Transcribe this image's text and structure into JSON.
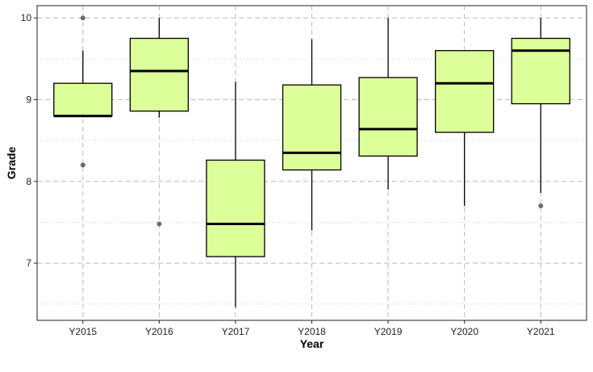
{
  "chart_data": {
    "type": "boxplot",
    "title": "",
    "xlabel": "Year",
    "ylabel": "Grade",
    "categories": [
      "Y2015",
      "Y2016",
      "Y2017",
      "Y2018",
      "Y2019",
      "Y2020",
      "Y2021"
    ],
    "boxes": [
      {
        "q1": 8.8,
        "median": 8.8,
        "q3": 9.2,
        "whisker_low": 8.8,
        "whisker_high": 9.6,
        "outliers": [
          10.0,
          8.2
        ]
      },
      {
        "q1": 8.86,
        "median": 9.35,
        "q3": 9.75,
        "whisker_low": 8.78,
        "whisker_high": 10.0,
        "outliers": [
          7.48
        ]
      },
      {
        "q1": 7.08,
        "median": 7.48,
        "q3": 8.26,
        "whisker_low": 6.46,
        "whisker_high": 9.22,
        "outliers": []
      },
      {
        "q1": 8.14,
        "median": 8.35,
        "q3": 9.18,
        "whisker_low": 7.4,
        "whisker_high": 9.74,
        "outliers": []
      },
      {
        "q1": 8.31,
        "median": 8.64,
        "q3": 9.27,
        "whisker_low": 7.9,
        "whisker_high": 10.0,
        "outliers": []
      },
      {
        "q1": 8.6,
        "median": 9.2,
        "q3": 9.6,
        "whisker_low": 7.7,
        "whisker_high": 9.6,
        "outliers": []
      },
      {
        "q1": 8.95,
        "median": 9.6,
        "q3": 9.75,
        "whisker_low": 7.86,
        "whisker_high": 10.0,
        "outliers": [
          7.7
        ]
      }
    ],
    "y_ticks": [
      7,
      8,
      9,
      10
    ],
    "ylim": [
      6.3,
      10.15
    ],
    "grid": true,
    "colors": {
      "box_fill": "#ddff99",
      "box_stroke": "#000000",
      "outlier": "#555555",
      "grid_major": "#bbbbbb",
      "grid_minor": "#cccccc"
    }
  }
}
